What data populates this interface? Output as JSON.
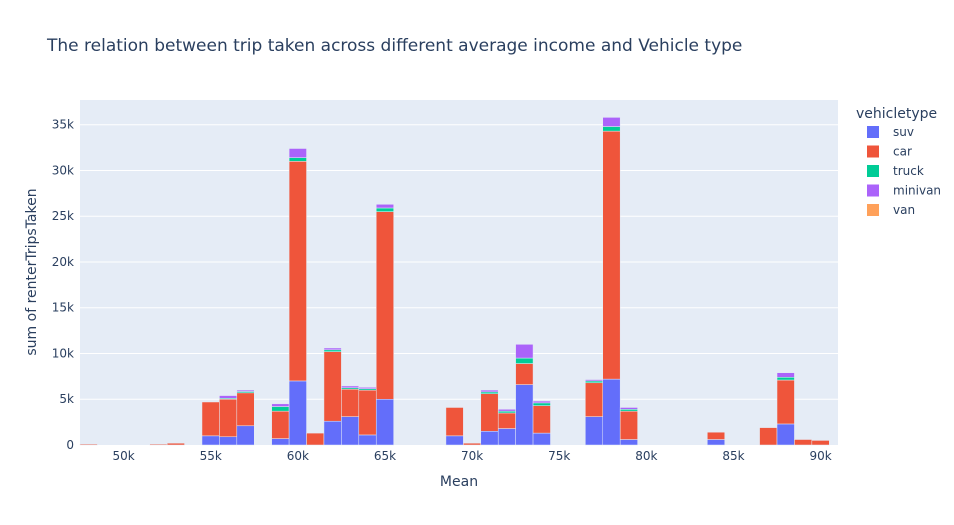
{
  "chart_data": {
    "type": "bar",
    "barmode": "stack",
    "title": "The relation between trip taken across different average income and Vehicle type",
    "xlabel": "Mean",
    "ylabel": "sum of renterTripsTaken",
    "xlim": [
      47500,
      91000
    ],
    "ylim": [
      0,
      37700
    ],
    "bin_width": 1000,
    "x_ticks": [
      {
        "value": 50000,
        "label": "50k"
      },
      {
        "value": 55000,
        "label": "55k"
      },
      {
        "value": 60000,
        "label": "60k"
      },
      {
        "value": 65000,
        "label": "65k"
      },
      {
        "value": 70000,
        "label": "70k"
      },
      {
        "value": 75000,
        "label": "75k"
      },
      {
        "value": 80000,
        "label": "80k"
      },
      {
        "value": 85000,
        "label": "85k"
      },
      {
        "value": 90000,
        "label": "90k"
      }
    ],
    "y_ticks": [
      {
        "value": 0,
        "label": "0"
      },
      {
        "value": 5000,
        "label": "5k"
      },
      {
        "value": 10000,
        "label": "10k"
      },
      {
        "value": 15000,
        "label": "15k"
      },
      {
        "value": 20000,
        "label": "20k"
      },
      {
        "value": 25000,
        "label": "25k"
      },
      {
        "value": 30000,
        "label": "30k"
      },
      {
        "value": 35000,
        "label": "35k"
      }
    ],
    "legend_title": "vehicletype",
    "legend_position": "right",
    "grid": true,
    "colors": {
      "suv": "#636efa",
      "car": "#ef553b",
      "truck": "#00cc96",
      "minivan": "#ab63fa",
      "van": "#ffa15a",
      "plot_bg": "#e5ecf6",
      "grid": "#ffffff",
      "text": "#2a3f5f"
    },
    "x": [
      48000,
      52000,
      53000,
      55000,
      56000,
      57000,
      59000,
      60000,
      61000,
      62000,
      63000,
      64000,
      65000,
      69000,
      70000,
      71000,
      72000,
      73000,
      74000,
      77000,
      78000,
      79000,
      84000,
      87000,
      88000,
      89000,
      90000
    ],
    "series": [
      {
        "name": "suv",
        "values": [
          0,
          0,
          0,
          1000,
          900,
          2100,
          700,
          7000,
          0,
          2600,
          3100,
          1100,
          5000,
          1000,
          0,
          1500,
          1800,
          6600,
          1300,
          3100,
          7200,
          600,
          600,
          0,
          2300,
          0,
          0
        ]
      },
      {
        "name": "car",
        "values": [
          100,
          100,
          200,
          3700,
          4100,
          3600,
          3000,
          24000,
          1300,
          7600,
          3000,
          4900,
          20500,
          3100,
          200,
          4100,
          1700,
          2300,
          3000,
          3700,
          27100,
          3100,
          800,
          1900,
          4800,
          600,
          500
        ]
      },
      {
        "name": "truck",
        "values": [
          0,
          0,
          0,
          0,
          100,
          150,
          500,
          400,
          0,
          200,
          150,
          150,
          400,
          0,
          0,
          200,
          200,
          600,
          300,
          200,
          500,
          200,
          0,
          0,
          300,
          0,
          0
        ]
      },
      {
        "name": "minivan",
        "values": [
          0,
          0,
          0,
          0,
          300,
          150,
          300,
          1000,
          0,
          200,
          200,
          150,
          400,
          0,
          0,
          200,
          200,
          1500,
          200,
          150,
          1000,
          200,
          0,
          0,
          500,
          0,
          0
        ]
      },
      {
        "name": "van",
        "values": [
          0,
          0,
          0,
          0,
          0,
          0,
          0,
          0,
          0,
          0,
          0,
          0,
          0,
          0,
          0,
          0,
          0,
          0,
          0,
          0,
          0,
          0,
          0,
          0,
          0,
          0,
          0
        ]
      }
    ]
  }
}
